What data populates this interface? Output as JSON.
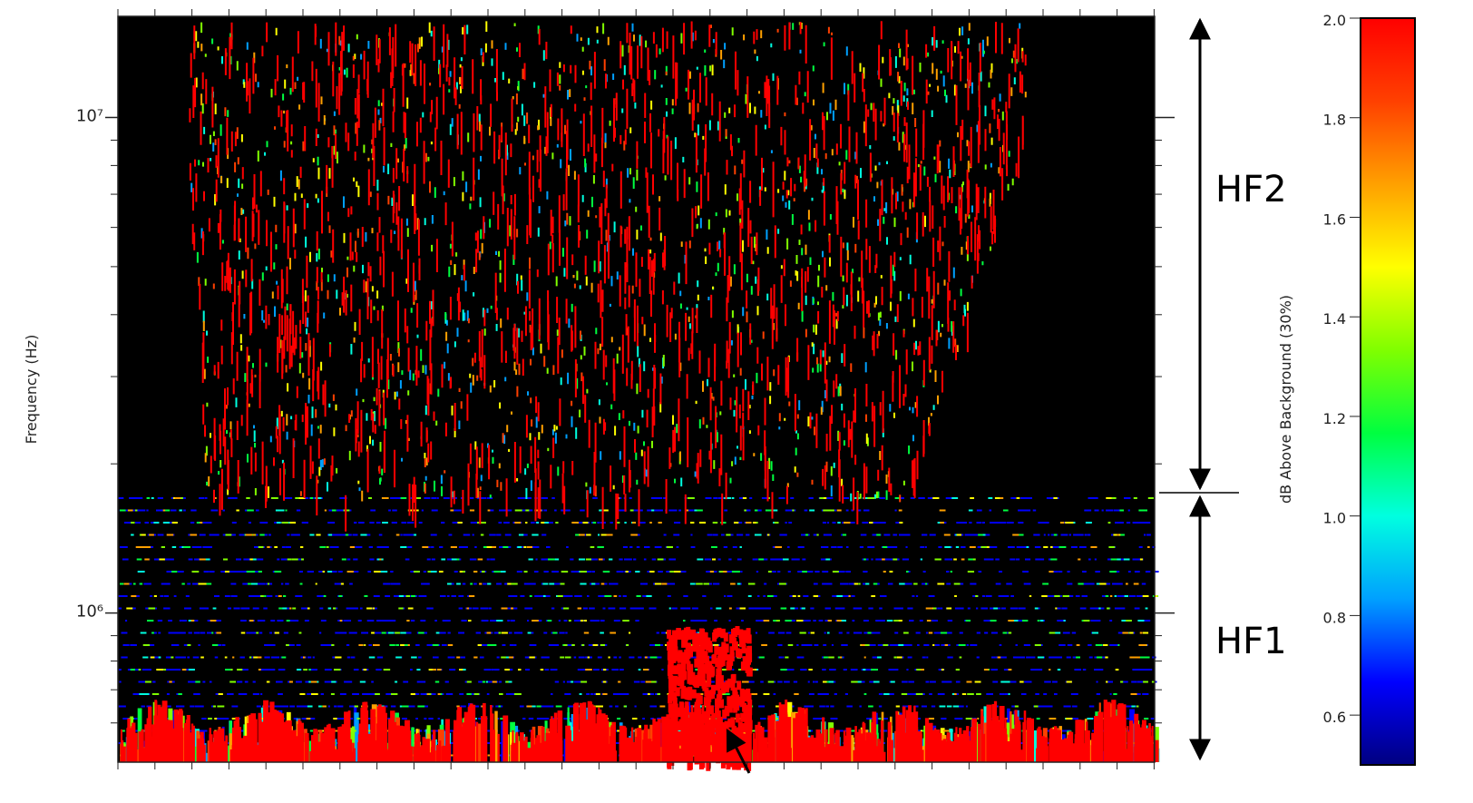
{
  "chart_data": {
    "type": "spectrogram",
    "y_label": "Frequency (Hz)",
    "y_scale": "log",
    "ylim": [
      500000,
      16000000
    ],
    "yticks": [
      {
        "value": 1000000,
        "label": "10⁶"
      },
      {
        "value": 10000000,
        "label": "10⁷"
      }
    ],
    "minor_yticks": [
      600000,
      700000,
      800000,
      900000,
      2000000,
      3000000,
      4000000,
      5000000,
      6000000,
      7000000,
      8000000,
      9000000
    ],
    "colorbar": {
      "label": "dB Above Background (30%)",
      "lim": [
        0.5,
        2.0
      ],
      "ticks": [
        {
          "value": 0.6,
          "label": "0.6"
        },
        {
          "value": 0.8,
          "label": "0.8"
        },
        {
          "value": 1.0,
          "label": "1.0"
        },
        {
          "value": 1.2,
          "label": "1.2"
        },
        {
          "value": 1.4,
          "label": "1.4"
        },
        {
          "value": 1.6,
          "label": "1.6"
        },
        {
          "value": 1.8,
          "label": "1.8"
        },
        {
          "value": 2.0,
          "label": "2.0"
        }
      ],
      "colormap": [
        "#000080",
        "#0000ff",
        "#00a0ff",
        "#00ffe0",
        "#00ff40",
        "#80ff00",
        "#ffff00",
        "#ffa000",
        "#ff4000",
        "#ff0000"
      ]
    },
    "annotations": [
      "HF2",
      "HF1"
    ]
  }
}
